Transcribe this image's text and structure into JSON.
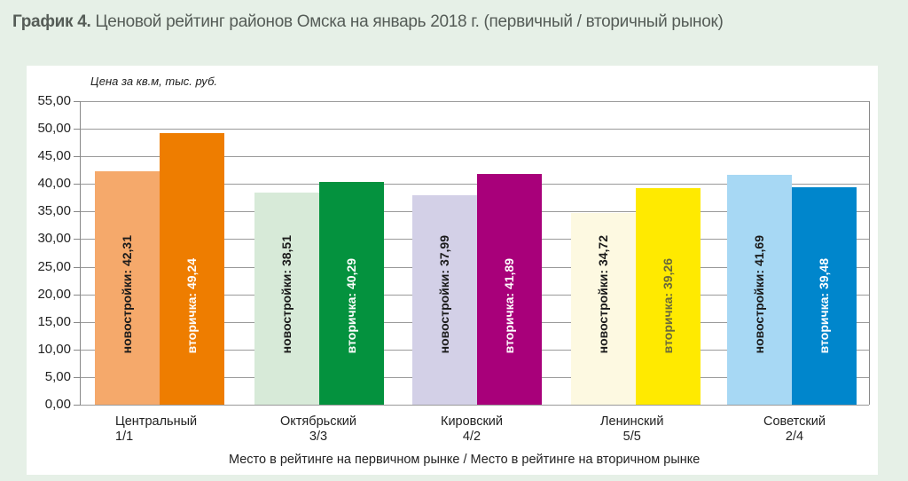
{
  "title": {
    "bold": "График 4.",
    "text": " Ценовой рейтинг районов Омска на январь 2018 г. (первичный / вторичный рынок)"
  },
  "chart_data": {
    "type": "bar",
    "title": "График 4. Ценовой рейтинг районов Омска на январь 2018 г. (первичный / вторичный рынок)",
    "ylabel": "Цена за кв.м, тыс. руб.",
    "xlabel": "Место в рейтинге на первичном рынке / Место в рейтинге на вторичном рынке",
    "ylim": [
      0,
      55
    ],
    "yticks": [
      "0,00",
      "5,00",
      "10,00",
      "15,00",
      "20,00",
      "25,00",
      "30,00",
      "35,00",
      "40,00",
      "45,00",
      "50,00",
      "55,00"
    ],
    "grid": true,
    "categories": [
      "Центральный 1/1",
      "Октябрьский 3/3",
      "Кировский 4/2",
      "Ленинский 5/5",
      "Советский 2/4"
    ],
    "series": [
      {
        "name": "новостройки",
        "values": [
          42.31,
          38.51,
          37.99,
          34.72,
          41.69
        ]
      },
      {
        "name": "вторичка",
        "values": [
          49.24,
          40.29,
          41.89,
          39.26,
          39.48
        ]
      }
    ]
  },
  "chart": {
    "ylabel": "Цена за кв.м, тыс. руб.",
    "xlabel": "Место в рейтинге на первичном рынке / Место в рейтинге на вторичном рынке",
    "yticks": [
      "0,00",
      "5,00",
      "10,00",
      "15,00",
      "20,00",
      "25,00",
      "30,00",
      "35,00",
      "40,00",
      "45,00",
      "50,00",
      "55,00"
    ],
    "groups": [
      {
        "name": "Центральный",
        "rank": "1/1",
        "primary": {
          "label": "новостройки: 42,31",
          "value": 42.31,
          "color": "#f5a96b",
          "text_color": "#1a1a1a"
        },
        "secondary": {
          "label": "вторичка: 49,24",
          "value": 49.24,
          "color": "#ee7d00",
          "text_color": "#ffffff"
        }
      },
      {
        "name": "Октябрьский",
        "rank": "3/3",
        "primary": {
          "label": "новостройки: 38,51",
          "value": 38.51,
          "color": "#d7ead8",
          "text_color": "#1a1a1a"
        },
        "secondary": {
          "label": "вторичка: 40,29",
          "value": 40.29,
          "color": "#04923e",
          "text_color": "#ffffff"
        }
      },
      {
        "name": "Кировский",
        "rank": "4/2",
        "primary": {
          "label": "новостройки: 37,99",
          "value": 37.99,
          "color": "#d3d0e7",
          "text_color": "#1a1a1a"
        },
        "secondary": {
          "label": "вторичка: 41,89",
          "value": 41.89,
          "color": "#a8007a",
          "text_color": "#ffffff"
        }
      },
      {
        "name": "Ленинский",
        "rank": "5/5",
        "primary": {
          "label": "новостройки: 34,72",
          "value": 34.72,
          "color": "#fdf9e1",
          "text_color": "#1a1a1a"
        },
        "secondary": {
          "label": "вторичка: 39,26",
          "value": 39.26,
          "color": "#ffea00",
          "text_color": "#6b6a3a"
        }
      },
      {
        "name": "Советский",
        "rank": "2/4",
        "primary": {
          "label": "новостройки: 41,69",
          "value": 41.69,
          "color": "#a7d8f4",
          "text_color": "#1a1a1a"
        },
        "secondary": {
          "label": "вторичка: 39,48",
          "value": 39.48,
          "color": "#0086cc",
          "text_color": "#ffffff"
        }
      }
    ]
  }
}
